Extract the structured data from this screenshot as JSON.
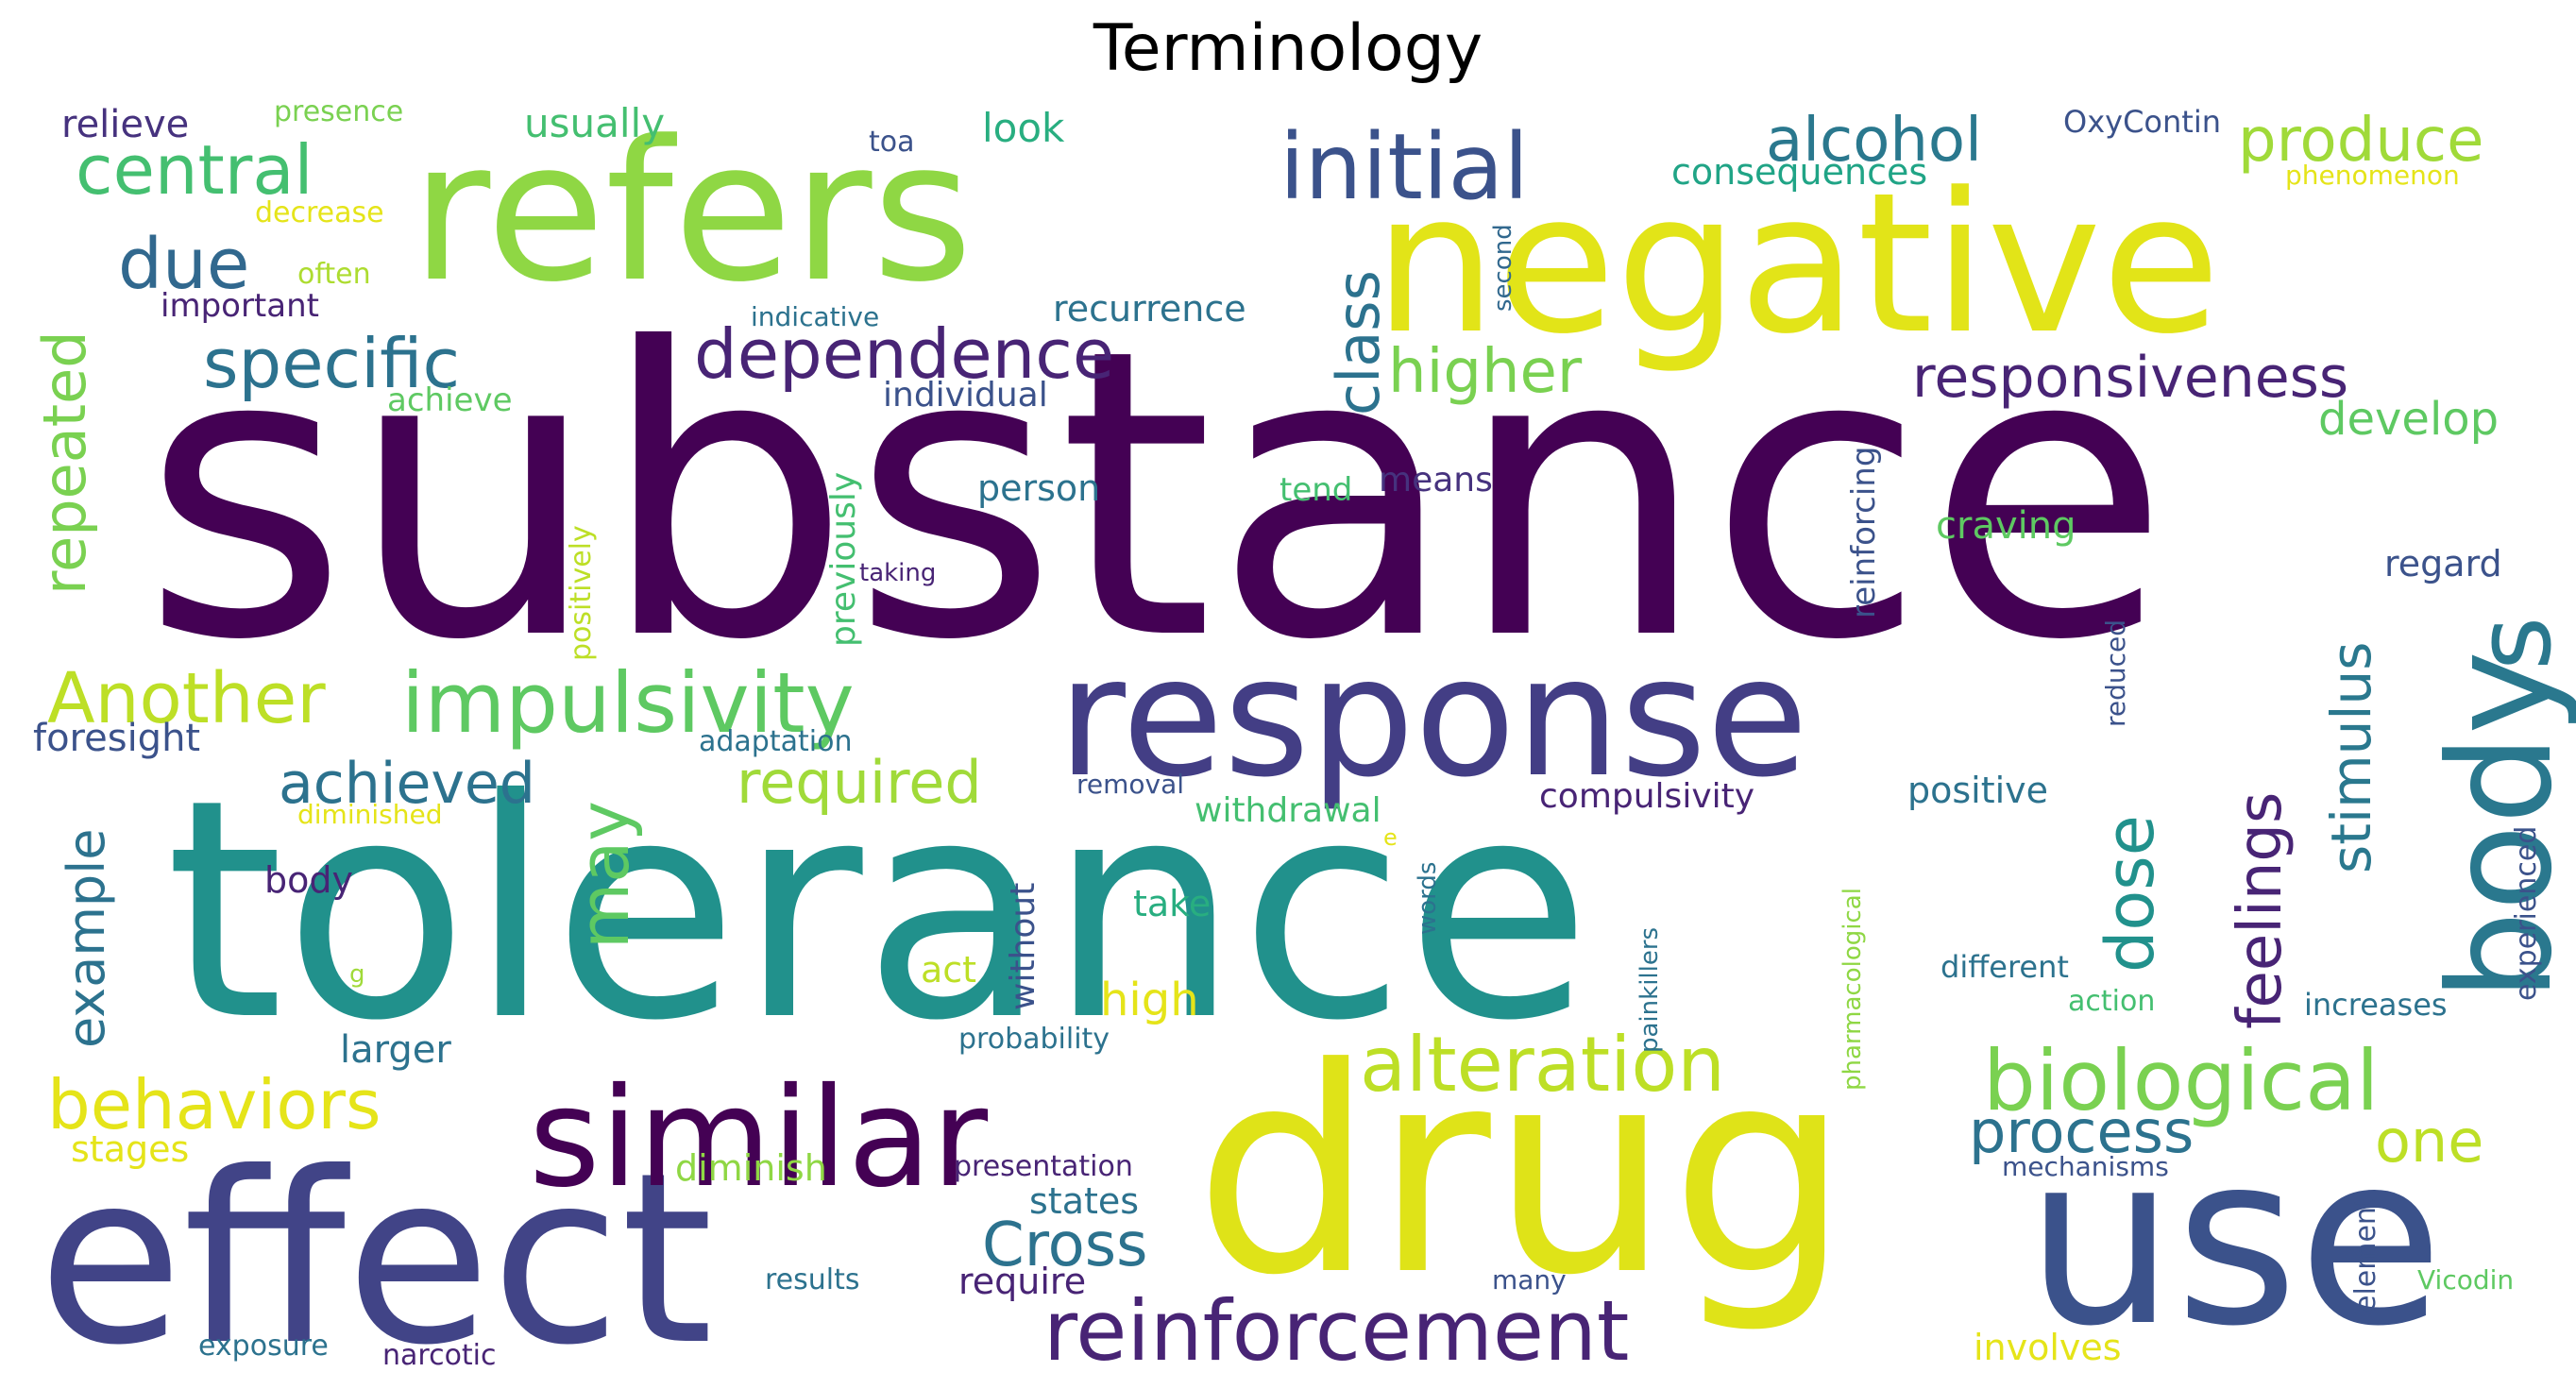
{
  "title": "Terminology",
  "palette": {
    "v0": "#440154",
    "v1": "#482475",
    "v2": "#414487",
    "v3": "#355f8d",
    "v4": "#2a788e",
    "v5": "#21918c",
    "v6": "#22a884",
    "v7": "#44bf70",
    "v8": "#7ad151",
    "v9": "#bddf26",
    "v10": "#fde725"
  },
  "words": [
    {
      "text": "substance",
      "color": "#440154",
      "vertical": false
    },
    {
      "text": "tolerance",
      "color": "#21918c",
      "vertical": false
    },
    {
      "text": "drug",
      "color": "#dfe318",
      "vertical": false
    },
    {
      "text": "negative",
      "color": "#e2e418",
      "vertical": false
    },
    {
      "text": "refers",
      "color": "#8fd744",
      "vertical": false
    },
    {
      "text": "effect",
      "color": "#414487",
      "vertical": false
    },
    {
      "text": "use",
      "color": "#3b528b",
      "vertical": false
    },
    {
      "text": "response",
      "color": "#433e85",
      "vertical": false
    },
    {
      "text": "similar",
      "color": "#440154",
      "vertical": false
    },
    {
      "text": "body",
      "color": "#2a788e",
      "vertical": true
    },
    {
      "text": "s",
      "color": "#2a788e",
      "vertical": true
    },
    {
      "text": "initial",
      "color": "#3b528b",
      "vertical": false
    },
    {
      "text": "reinforcement",
      "color": "#482475",
      "vertical": false
    },
    {
      "text": "impulsivity",
      "color": "#5ec962",
      "vertical": false
    },
    {
      "text": "biological",
      "color": "#7ad151",
      "vertical": false
    },
    {
      "text": "alteration",
      "color": "#bddf26",
      "vertical": false
    },
    {
      "text": "dependence",
      "color": "#482475",
      "vertical": false
    },
    {
      "text": "specific",
      "color": "#2c728e",
      "vertical": false
    },
    {
      "text": "central",
      "color": "#44bf70",
      "vertical": false
    },
    {
      "text": "due",
      "color": "#31688e",
      "vertical": false
    },
    {
      "text": "alcohol",
      "color": "#2a788e",
      "vertical": false
    },
    {
      "text": "produce",
      "color": "#a0da39",
      "vertical": false
    },
    {
      "text": "responsiveness",
      "color": "#482475",
      "vertical": false
    },
    {
      "text": "higher",
      "color": "#7ad151",
      "vertical": false
    },
    {
      "text": "class",
      "color": "#2c728e",
      "vertical": true
    },
    {
      "text": "Another",
      "color": "#bddf26",
      "vertical": false
    },
    {
      "text": "repeated",
      "color": "#7ad151",
      "vertical": true
    },
    {
      "text": "behaviors",
      "color": "#e5e419",
      "vertical": false
    },
    {
      "text": "achieved",
      "color": "#2c728e",
      "vertical": false
    },
    {
      "text": "required",
      "color": "#a0da39",
      "vertical": false
    },
    {
      "text": "may",
      "color": "#5ec962",
      "vertical": true
    },
    {
      "text": "dose",
      "color": "#21918c",
      "vertical": true
    },
    {
      "text": "feelings",
      "color": "#482475",
      "vertical": true
    },
    {
      "text": "stimulus",
      "color": "#2a788e",
      "vertical": true
    },
    {
      "text": "process",
      "color": "#2c728e",
      "vertical": false
    },
    {
      "text": "one",
      "color": "#bddf26",
      "vertical": false
    },
    {
      "text": "Cross",
      "color": "#2c728e",
      "vertical": false
    },
    {
      "text": "example",
      "color": "#2c728e",
      "vertical": true
    },
    {
      "text": "develop",
      "color": "#5ec962",
      "vertical": false
    },
    {
      "text": "relieve",
      "color": "#46327e",
      "vertical": false
    },
    {
      "text": "presence",
      "color": "#7ad151",
      "vertical": false
    },
    {
      "text": "usually",
      "color": "#44bf70",
      "vertical": false
    },
    {
      "text": "toa",
      "color": "#3b528b",
      "vertical": false
    },
    {
      "text": "look",
      "color": "#28ae80",
      "vertical": false
    },
    {
      "text": "consequences",
      "color": "#20a486",
      "vertical": false
    },
    {
      "text": "OxyContin",
      "color": "#3b528b",
      "vertical": false
    },
    {
      "text": "phenomenon",
      "color": "#e5e419",
      "vertical": false
    },
    {
      "text": "decrease",
      "color": "#e5e419",
      "vertical": false
    },
    {
      "text": "often",
      "color": "#addc30",
      "vertical": false
    },
    {
      "text": "important",
      "color": "#482475",
      "vertical": false
    },
    {
      "text": "indicative",
      "color": "#2c728e",
      "vertical": false
    },
    {
      "text": "recurrence",
      "color": "#2c728e",
      "vertical": false
    },
    {
      "text": "second",
      "color": "#31688e",
      "vertical": true
    },
    {
      "text": "achieve",
      "color": "#5ec962",
      "vertical": false
    },
    {
      "text": "individual",
      "color": "#3b528b",
      "vertical": false
    },
    {
      "text": "previously",
      "color": "#44bf70",
      "vertical": true
    },
    {
      "text": "positively",
      "color": "#bddf26",
      "vertical": true
    },
    {
      "text": "person",
      "color": "#2c728e",
      "vertical": false
    },
    {
      "text": "tend",
      "color": "#44bf70",
      "vertical": false
    },
    {
      "text": "means",
      "color": "#46327e",
      "vertical": false
    },
    {
      "text": "reinforcing",
      "color": "#3b528b",
      "vertical": true
    },
    {
      "text": "craving",
      "color": "#5ec962",
      "vertical": false
    },
    {
      "text": "regard",
      "color": "#3b528b",
      "vertical": false
    },
    {
      "text": "taking",
      "color": "#482475",
      "vertical": false
    },
    {
      "text": "reduced",
      "color": "#3b528b",
      "vertical": true
    },
    {
      "text": "foresight",
      "color": "#3b528b",
      "vertical": false
    },
    {
      "text": "adaptation",
      "color": "#2c728e",
      "vertical": false
    },
    {
      "text": "experienced",
      "color": "#3b528b",
      "vertical": true
    },
    {
      "text": "diminished",
      "color": "#e5e419",
      "vertical": false
    },
    {
      "text": "removal",
      "color": "#3b528b",
      "vertical": false
    },
    {
      "text": "withdrawal",
      "color": "#44bf70",
      "vertical": false
    },
    {
      "text": "compulsivity",
      "color": "#482475",
      "vertical": false
    },
    {
      "text": "positive",
      "color": "#2c728e",
      "vertical": false
    },
    {
      "text": "body",
      "color": "#482475",
      "vertical": false
    },
    {
      "text": "without",
      "color": "#3b528b",
      "vertical": true
    },
    {
      "text": "e",
      "color": "#e5e419",
      "vertical": false
    },
    {
      "text": "words",
      "color": "#2c728e",
      "vertical": true
    },
    {
      "text": "painkillers",
      "color": "#2c728e",
      "vertical": true
    },
    {
      "text": "pharmacological",
      "color": "#8fd744",
      "vertical": true
    },
    {
      "text": "take",
      "color": "#28ae80",
      "vertical": false
    },
    {
      "text": "act",
      "color": "#bddf26",
      "vertical": false
    },
    {
      "text": "g",
      "color": "#a0da39",
      "vertical": false
    },
    {
      "text": "high",
      "color": "#e5e419",
      "vertical": false
    },
    {
      "text": "different",
      "color": "#2c728e",
      "vertical": false
    },
    {
      "text": "action",
      "color": "#44bf70",
      "vertical": false
    },
    {
      "text": "increases",
      "color": "#2c728e",
      "vertical": false
    },
    {
      "text": "larger",
      "color": "#2c728e",
      "vertical": false
    },
    {
      "text": "probability",
      "color": "#2c728e",
      "vertical": false
    },
    {
      "text": "stages",
      "color": "#e5e419",
      "vertical": false
    },
    {
      "text": "diminish",
      "color": "#8fd744",
      "vertical": false
    },
    {
      "text": "presentation",
      "color": "#482475",
      "vertical": false
    },
    {
      "text": "mechanisms",
      "color": "#3b528b",
      "vertical": false
    },
    {
      "text": "element",
      "color": "#3b528b",
      "vertical": true
    },
    {
      "text": "states",
      "color": "#2c728e",
      "vertical": false
    },
    {
      "text": "require",
      "color": "#482475",
      "vertical": false
    },
    {
      "text": "results",
      "color": "#2c728e",
      "vertical": false
    },
    {
      "text": "many",
      "color": "#3b528b",
      "vertical": false
    },
    {
      "text": "Vicodin",
      "color": "#5ec962",
      "vertical": false
    },
    {
      "text": "exposure",
      "color": "#2c728e",
      "vertical": false
    },
    {
      "text": "narcotic",
      "color": "#482475",
      "vertical": false
    },
    {
      "text": "involves",
      "color": "#e5e419",
      "vertical": false
    }
  ]
}
